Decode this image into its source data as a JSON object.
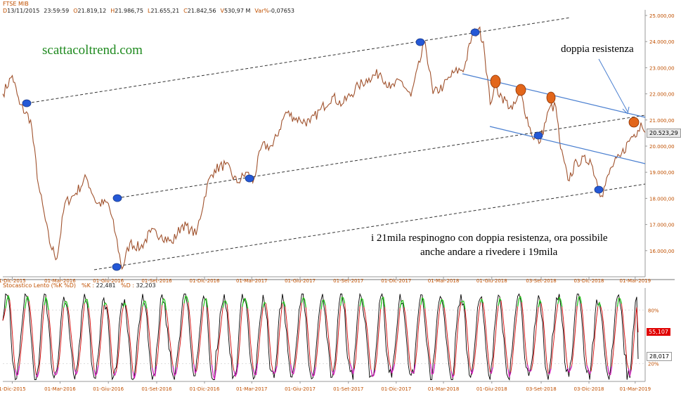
{
  "header": {
    "symbol": "FTSE MIB",
    "fields": [
      {
        "key": "D",
        "value": "13/11/2015"
      },
      {
        "key": "",
        "value": "23:59:59"
      },
      {
        "key": "O",
        "value": "21.819,12"
      },
      {
        "key": "H",
        "value": "21.986,75"
      },
      {
        "key": "L",
        "value": "21.655,21"
      },
      {
        "key": "C",
        "value": "21.842,56"
      },
      {
        "key": "V",
        "value": "530,97 M"
      },
      {
        "key": "Var%",
        "value": "-0,07653"
      }
    ]
  },
  "oscillator_header": {
    "name": "Stocastico Lento (%K %D)",
    "k_key": "%K :",
    "k_value": "22,481",
    "d_key": "%D :",
    "d_value": "32,203"
  },
  "annotations": {
    "watermark": "scattacoltrend.com",
    "resistance_label": "doppia resistenza",
    "comment_line1": "i 21mila respinogno con doppia resistenza, ora possibile",
    "comment_line2": "anche andare a rivedere i 19mila"
  },
  "colors": {
    "price": "#a0522d",
    "axis_text": "#c05000",
    "channel": "#333333",
    "trendline": "#4a7fd0",
    "blue_marker": "#2458d6",
    "orange_marker": "#e2661b",
    "k_line": "#000000",
    "d_line": "#d00000",
    "overbought": "#22cc22",
    "oversold": "#d020c0",
    "last_price_box": "#e8e8e8",
    "k_box": "#ffffff",
    "d_box": "#e00000"
  },
  "chart_data": [
    {
      "type": "line",
      "title": "FTSE MIB",
      "ylim": [
        15000,
        25000
      ],
      "y_ticks": [
        "25.000,00",
        "24.000,00",
        "23.000,00",
        "22.000,00",
        "21.000,00",
        "20.000,00",
        "19.000,00",
        "18.000,00",
        "17.000,00",
        "16.000,00"
      ],
      "y_tick_values": [
        25000,
        24000,
        23000,
        22000,
        21000,
        20000,
        19000,
        18000,
        17000,
        16000
      ],
      "x_ticks": [
        "1-Dic-2015",
        "01-Mar-2016",
        "01-Giu-2016",
        "01-Set-2016",
        "01-Dic-2016",
        "01-Mar-2017",
        "01-Giu-2017",
        "01-Set-2017",
        "01-Dic-2017",
        "01-Mar-2018",
        "01-Giu-2018",
        "03-Set-2018",
        "03-Dic-2018",
        "01-Mar-2019"
      ],
      "x_range": [
        "2015-11-13",
        "2019-03-20"
      ],
      "last_price_label": "20.523,29",
      "last_price": 20523.29,
      "series": [
        {
          "points": [
            [
              "2015-11-13",
              22000
            ],
            [
              "2015-12-01",
              22700
            ],
            [
              "2015-12-15",
              21600
            ],
            [
              "2016-01-05",
              21000
            ],
            [
              "2016-01-20",
              18500
            ],
            [
              "2016-02-10",
              16300
            ],
            [
              "2016-02-24",
              15700
            ],
            [
              "2016-03-10",
              17800
            ],
            [
              "2016-03-31",
              18200
            ],
            [
              "2016-04-20",
              18800
            ],
            [
              "2016-05-10",
              17800
            ],
            [
              "2016-06-01",
              17800
            ],
            [
              "2016-06-15",
              16600
            ],
            [
              "2016-06-27",
              15300
            ],
            [
              "2016-07-12",
              16300
            ],
            [
              "2016-08-01",
              16100
            ],
            [
              "2016-08-20",
              16700
            ],
            [
              "2016-09-10",
              16600
            ],
            [
              "2016-09-30",
              16300
            ],
            [
              "2016-10-20",
              17000
            ],
            [
              "2016-11-04",
              16800
            ],
            [
              "2016-11-15",
              16600
            ],
            [
              "2016-12-06",
              18500
            ],
            [
              "2016-12-20",
              19100
            ],
            [
              "2017-01-10",
              19300
            ],
            [
              "2017-02-01",
              18600
            ],
            [
              "2017-02-20",
              19000
            ],
            [
              "2017-03-03",
              18600
            ],
            [
              "2017-03-20",
              20000
            ],
            [
              "2017-04-10",
              20000
            ],
            [
              "2017-05-05",
              21300
            ],
            [
              "2017-05-20",
              21100
            ],
            [
              "2017-06-01",
              21000
            ],
            [
              "2017-06-20",
              20900
            ],
            [
              "2017-07-10",
              21400
            ],
            [
              "2017-08-01",
              21900
            ],
            [
              "2017-08-20",
              21600
            ],
            [
              "2017-09-20",
              22300
            ],
            [
              "2017-10-10",
              22600
            ],
            [
              "2017-11-01",
              22800
            ],
            [
              "2017-11-20",
              22200
            ],
            [
              "2017-12-10",
              22500
            ],
            [
              "2017-12-29",
              21900
            ],
            [
              "2018-01-25",
              24000
            ],
            [
              "2018-02-09",
              22000
            ],
            [
              "2018-03-01",
              22300
            ],
            [
              "2018-03-20",
              22800
            ],
            [
              "2018-04-10",
              23000
            ],
            [
              "2018-04-24",
              24200
            ],
            [
              "2018-05-07",
              24500
            ],
            [
              "2018-05-16",
              24000
            ],
            [
              "2018-05-29",
              21600
            ],
            [
              "2018-06-06",
              22300
            ],
            [
              "2018-06-20",
              21900
            ],
            [
              "2018-07-10",
              21400
            ],
            [
              "2018-07-26",
              22000
            ],
            [
              "2018-08-15",
              20500
            ],
            [
              "2018-08-30",
              20100
            ],
            [
              "2018-09-20",
              21500
            ],
            [
              "2018-10-01",
              21500
            ],
            [
              "2018-10-10",
              19900
            ],
            [
              "2018-10-24",
              18700
            ],
            [
              "2018-11-10",
              19400
            ],
            [
              "2018-12-05",
              19500
            ],
            [
              "2018-12-27",
              18100
            ],
            [
              "2019-01-15",
              19200
            ],
            [
              "2019-02-01",
              19600
            ],
            [
              "2019-02-20",
              20300
            ],
            [
              "2019-03-06",
              20600
            ],
            [
              "2019-03-12",
              20900
            ],
            [
              "2019-03-20",
              20523
            ]
          ]
        }
      ]
    },
    {
      "type": "line",
      "title": "Stocastico Lento (%K %D)",
      "ylim": [
        0,
        100
      ],
      "y_ticks": [
        "80%",
        "20%"
      ],
      "y_tick_values": [
        80,
        20
      ],
      "last_labels": [
        "55,107",
        "28,017"
      ],
      "last_values": [
        55.107,
        28.017
      ],
      "series": [
        {
          "name": "%K"
        },
        {
          "name": "%D"
        }
      ]
    }
  ]
}
